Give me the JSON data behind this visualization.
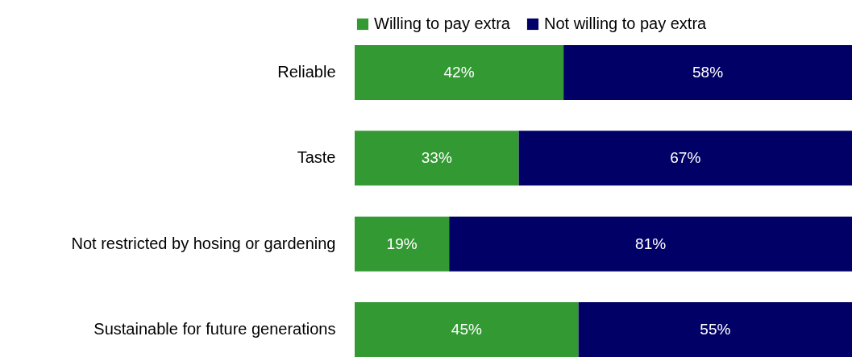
{
  "chart_data": {
    "type": "bar",
    "orientation": "horizontal",
    "stacked": true,
    "categories": [
      "Reliable",
      "Taste",
      "Not restricted by hosing or gardening",
      "Sustainable for future generations"
    ],
    "series": [
      {
        "name": "Willing to pay extra",
        "color": "#339933",
        "values": [
          42,
          33,
          19,
          45
        ],
        "value_labels": [
          "42%",
          "33%",
          "19%",
          "45%"
        ]
      },
      {
        "name": "Not willing to pay extra",
        "color": "#000066",
        "values": [
          58,
          67,
          81,
          55
        ],
        "value_labels": [
          "58%",
          "67%",
          "81%",
          "55%"
        ]
      }
    ],
    "xlim": [
      0,
      100
    ],
    "tick_labels": "y",
    "legend": "top"
  }
}
